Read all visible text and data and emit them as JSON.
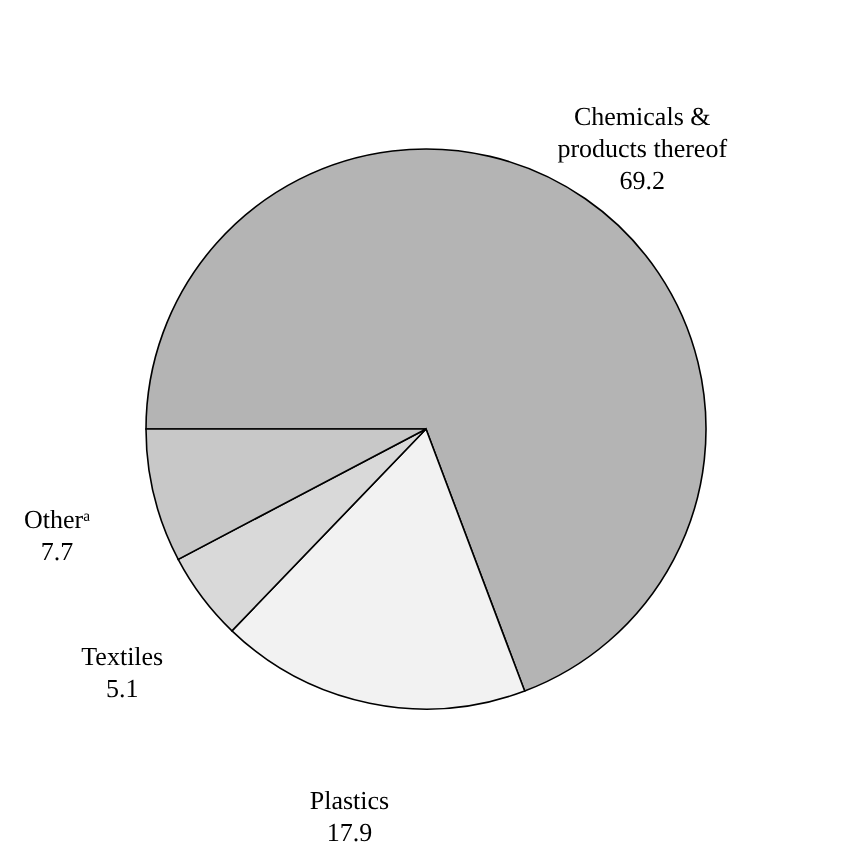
{
  "chart_data": {
    "type": "pie",
    "categories": [
      "Chemicals & products thereof",
      "Plastics",
      "Textiles",
      "Otherᵃ"
    ],
    "values": [
      69.2,
      17.9,
      5.1,
      7.7
    ],
    "colors": [
      "#b4b4b4",
      "#f2f2f2",
      "#d9d9d9",
      "#c8c8c8"
    ],
    "data_labels": true
  }
}
